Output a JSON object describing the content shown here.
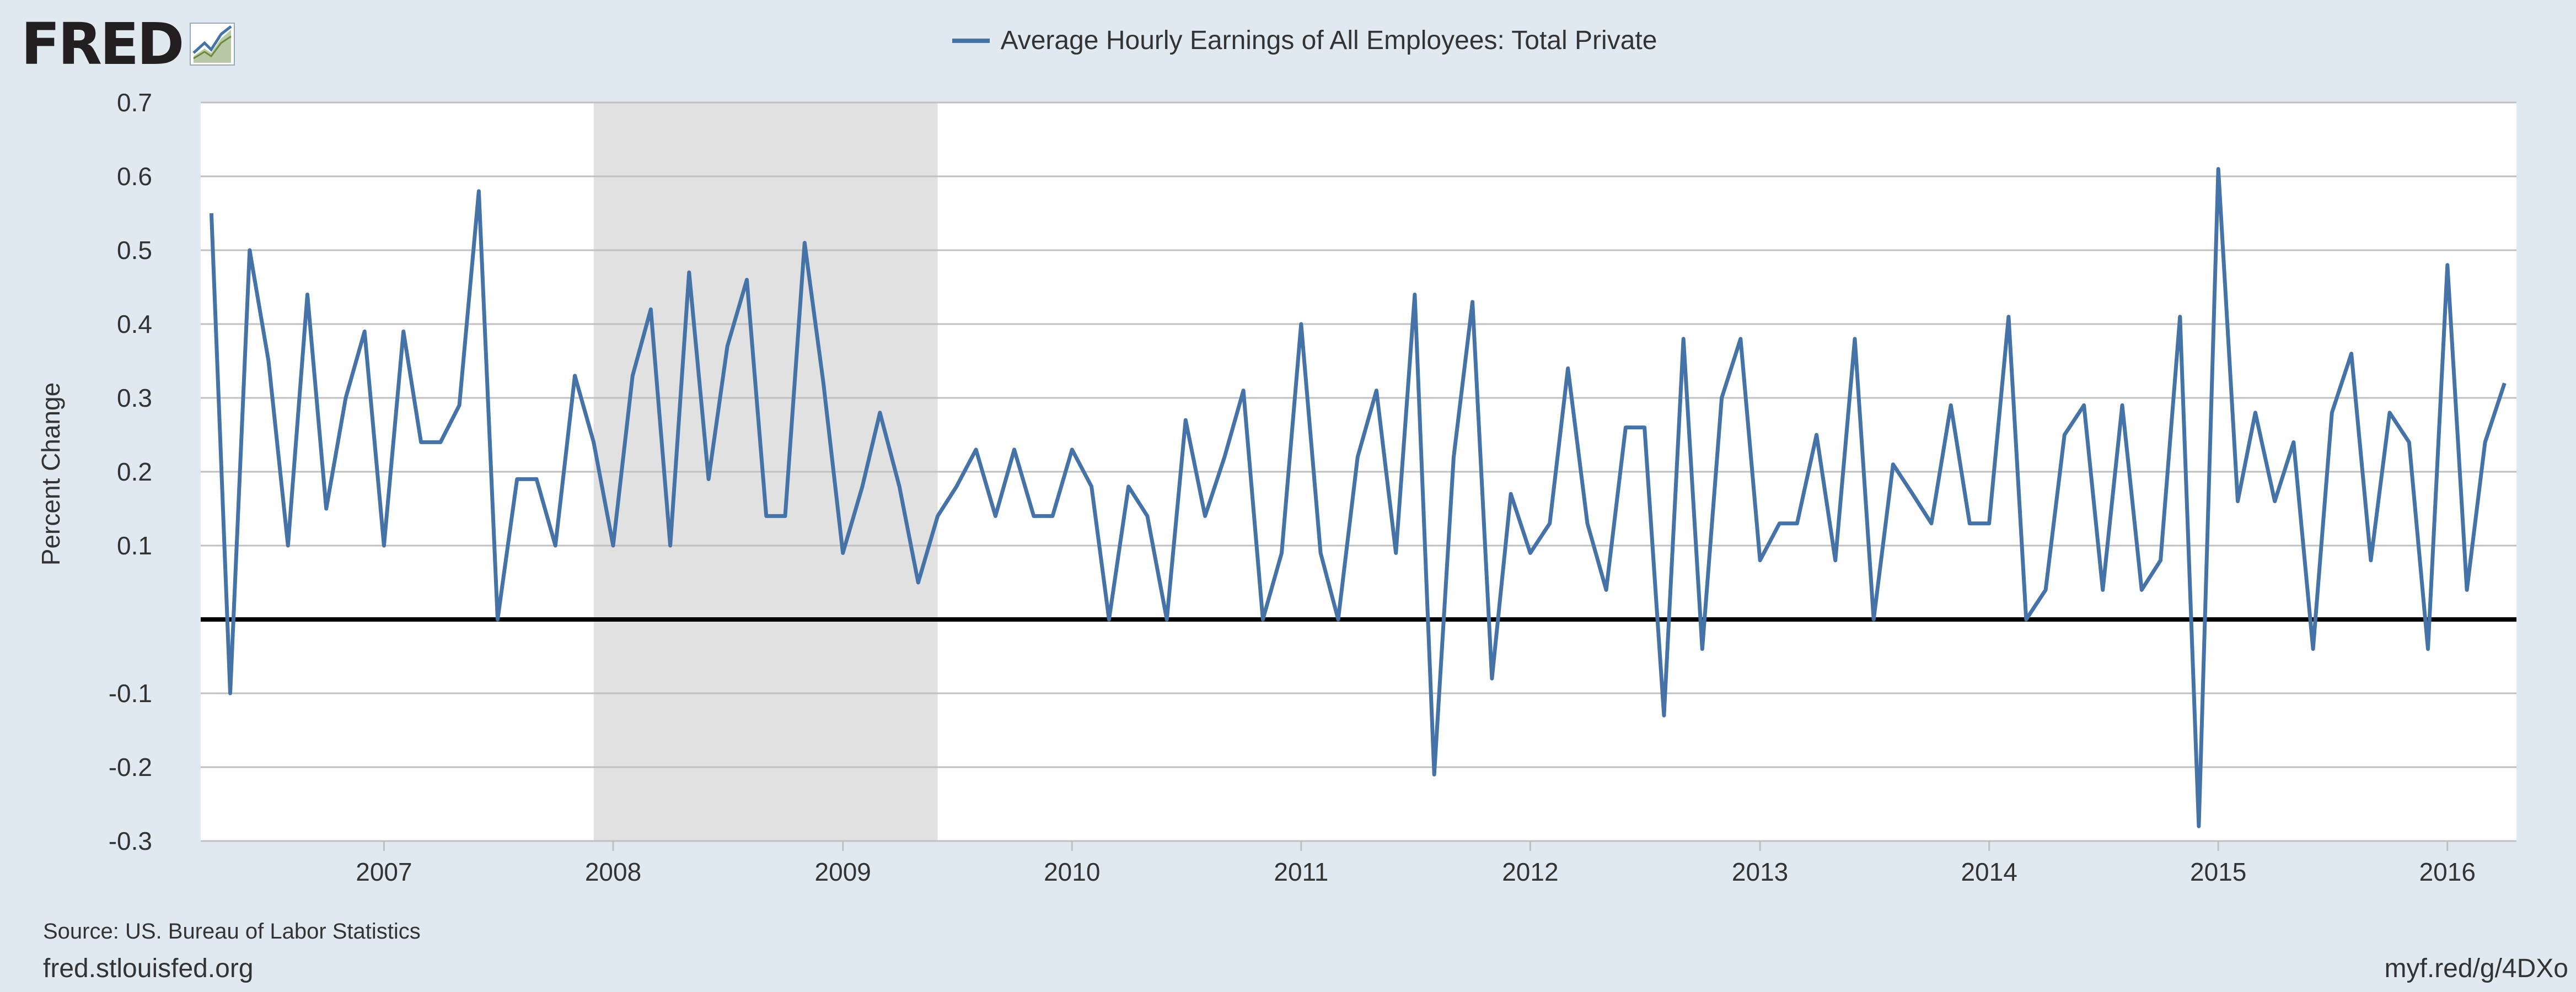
{
  "header": {
    "logo_text": "FRED",
    "logo_icon": "trend-line-icon"
  },
  "footer": {
    "source": "Source: US. Bureau of Labor Statistics",
    "site": "fred.stlouisfed.org",
    "shortlink": "myf.red/g/4DXo"
  },
  "colors": {
    "series": "#4572a7",
    "recession": "#e1e1e1",
    "plot_bg": "#ffffff",
    "page_bg": "#e1e9f0",
    "grid": "#c0c0c0",
    "zero_line": "#000000"
  },
  "chart_data": {
    "type": "line",
    "title": "",
    "ylabel": "Percent Change",
    "xlabel": "",
    "ylim": [
      -0.3,
      0.7
    ],
    "xlim": [
      "2006-03-15",
      "2016-04-20"
    ],
    "grid": true,
    "legend_position": "top-center",
    "y_ticks": [
      {
        "value": 0.7,
        "label": "0.7"
      },
      {
        "value": 0.6,
        "label": "0.6"
      },
      {
        "value": 0.5,
        "label": "0.5"
      },
      {
        "value": 0.4,
        "label": "0.4"
      },
      {
        "value": 0.3,
        "label": "0.3"
      },
      {
        "value": 0.2,
        "label": "0.2"
      },
      {
        "value": 0.1,
        "label": "0.1"
      },
      {
        "value": -0.1,
        "label": "-0.1"
      },
      {
        "value": -0.2,
        "label": "-0.2"
      },
      {
        "value": -0.3,
        "label": "-0.3"
      }
    ],
    "x_ticks": [
      {
        "date": "2007-01-01",
        "label": "2007"
      },
      {
        "date": "2008-01-01",
        "label": "2008"
      },
      {
        "date": "2009-01-01",
        "label": "2009"
      },
      {
        "date": "2010-01-01",
        "label": "2010"
      },
      {
        "date": "2011-01-01",
        "label": "2011"
      },
      {
        "date": "2012-01-01",
        "label": "2012"
      },
      {
        "date": "2013-01-01",
        "label": "2013"
      },
      {
        "date": "2014-01-01",
        "label": "2014"
      },
      {
        "date": "2015-01-01",
        "label": "2015"
      },
      {
        "date": "2016-01-01",
        "label": "2016"
      }
    ],
    "recessions": [
      {
        "start": "2007-12-01",
        "end": "2009-06-01"
      }
    ],
    "series": [
      {
        "name": "Average Hourly Earnings of All Employees: Total Private",
        "start": "2006-04-01",
        "frequency": "monthly",
        "values": [
          0.55,
          -0.1,
          0.5,
          0.35,
          0.1,
          0.44,
          0.15,
          0.3,
          0.39,
          0.1,
          0.39,
          0.24,
          0.24,
          0.29,
          0.58,
          0.0,
          0.19,
          0.19,
          0.1,
          0.33,
          0.24,
          0.1,
          0.33,
          0.42,
          0.1,
          0.47,
          0.19,
          0.37,
          0.46,
          0.14,
          0.14,
          0.51,
          0.32,
          0.09,
          0.18,
          0.28,
          0.18,
          0.05,
          0.14,
          0.18,
          0.23,
          0.14,
          0.23,
          0.14,
          0.14,
          0.23,
          0.18,
          0.0,
          0.18,
          0.14,
          0.0,
          0.27,
          0.14,
          0.22,
          0.31,
          0.0,
          0.09,
          0.4,
          0.09,
          0.0,
          0.22,
          0.31,
          0.09,
          0.44,
          -0.21,
          0.22,
          0.43,
          -0.08,
          0.17,
          0.09,
          0.13,
          0.34,
          0.13,
          0.04,
          0.26,
          0.26,
          -0.13,
          0.38,
          -0.04,
          0.3,
          0.38,
          0.08,
          0.13,
          0.13,
          0.25,
          0.08,
          0.38,
          0.0,
          0.21,
          0.17,
          0.13,
          0.29,
          0.13,
          0.13,
          0.41,
          0.0,
          0.04,
          0.25,
          0.29,
          0.04,
          0.29,
          0.04,
          0.08,
          0.41,
          -0.28,
          0.61,
          0.16,
          0.28,
          0.16,
          0.24,
          -0.04,
          0.28,
          0.36,
          0.08,
          0.28,
          0.24,
          -0.04,
          0.48,
          0.04,
          0.24,
          0.32
        ]
      }
    ]
  }
}
